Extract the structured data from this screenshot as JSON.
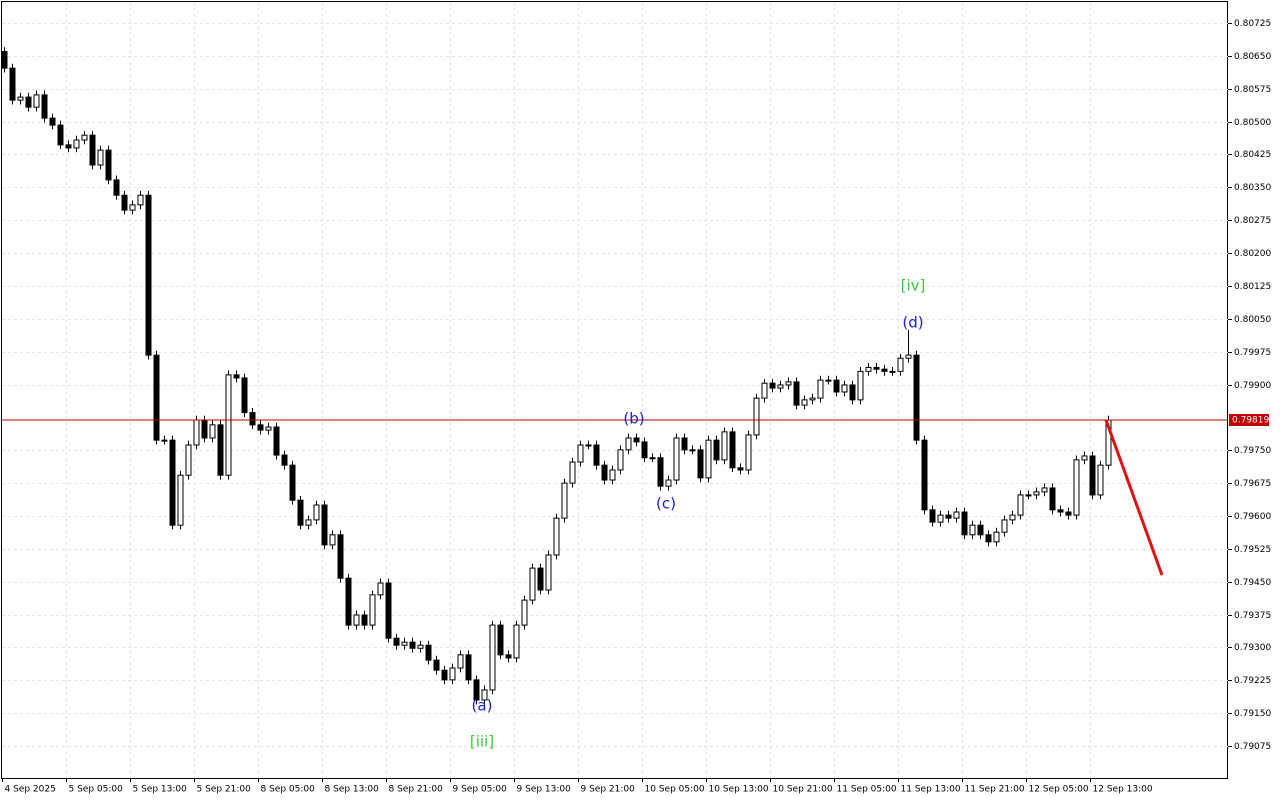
{
  "chart_data": {
    "type": "candlestick",
    "ylim": [
      0.79002,
      0.80773
    ],
    "yticks": [
      0.80725,
      {
        "value": 0.8065,
        "label": "0.80650"
      },
      0.80575,
      {
        "value": 0.805,
        "label": "0.80500"
      },
      0.80425,
      {
        "value": 0.8035,
        "label": "0.80350"
      },
      0.80275,
      {
        "value": 0.802,
        "label": "0.80200"
      },
      0.80125,
      {
        "value": 0.8005,
        "label": "0.80050"
      },
      0.79975,
      {
        "value": 0.799,
        "label": "0.79900"
      },
      {
        "value": 0.7975,
        "label": "0.79750"
      },
      0.79675,
      {
        "value": 0.796,
        "label": "0.79600"
      },
      0.79525,
      {
        "value": 0.7945,
        "label": "0.79450"
      },
      0.79375,
      {
        "value": 0.793,
        "label": "0.79300"
      },
      0.79225,
      {
        "value": 0.7915,
        "label": "0.79150"
      },
      0.79075
    ],
    "grid": true,
    "categories": [
      "4 Sep 2025",
      null,
      null,
      null,
      null,
      null,
      null,
      null,
      "5 Sep 05:00",
      null,
      null,
      null,
      null,
      null,
      null,
      null,
      "5 Sep 13:00",
      null,
      null,
      null,
      null,
      null,
      null,
      null,
      "5 Sep 21:00",
      null,
      null,
      null,
      null,
      null,
      null,
      null,
      "8 Sep 05:00",
      null,
      null,
      null,
      null,
      null,
      null,
      null,
      "8 Sep 13:00",
      null,
      null,
      null,
      null,
      null,
      null,
      null,
      "8 Sep 21:00",
      null,
      null,
      null,
      null,
      null,
      null,
      null,
      "9 Sep 05:00",
      null,
      null,
      null,
      null,
      null,
      null,
      null,
      "9 Sep 13:00",
      null,
      null,
      null,
      null,
      null,
      null,
      null,
      "9 Sep 21:00",
      null,
      null,
      null,
      null,
      null,
      null,
      null,
      "10 Sep 05:00",
      null,
      null,
      null,
      null,
      null,
      null,
      null,
      "10 Sep 13:00",
      null,
      null,
      null,
      null,
      null,
      null,
      null,
      "10 Sep 21:00",
      null,
      null,
      null,
      null,
      null,
      null,
      null,
      "11 Sep 05:00",
      null,
      null,
      null,
      null,
      null,
      null,
      null,
      "11 Sep 13:00",
      null,
      null,
      null,
      null,
      null,
      null,
      null,
      "11 Sep 21:00",
      null,
      null,
      null,
      null,
      null,
      null,
      null,
      "12 Sep 05:00",
      null,
      null,
      null,
      null,
      null,
      null,
      null,
      "12 Sep 13:00",
      null,
      null
    ],
    "open": [
      0.8066,
      0.80622,
      0.80549,
      0.80556,
      0.80533,
      0.80561,
      0.80508,
      0.80492,
      0.80447,
      0.8044,
      0.80458,
      0.80469,
      0.80401,
      0.80435,
      0.80367,
      0.80332,
      0.80298,
      0.8031,
      0.80332,
      0.79967,
      0.79773,
      0.79773,
      0.79579,
      0.79693,
      0.79762,
      0.79819,
      0.79778,
      0.79808,
      0.79693,
      0.79922,
      0.79915,
      0.79836,
      0.79808,
      0.79796,
      0.79803,
      0.79739,
      0.79716,
      0.79636,
      0.79579,
      0.79591,
      0.79625,
      0.79534,
      0.79557,
      0.79458,
      0.79351,
      0.79374,
      0.79351,
      0.7942,
      0.79447,
      0.79321,
      0.79305,
      0.79312,
      0.79298,
      0.79305,
      0.79271,
      0.79248,
      0.79226,
      0.79253,
      0.79283,
      0.79226,
      0.7918,
      0.79203,
      0.79351,
      0.79283,
      0.79276,
      0.79351,
      0.79408,
      0.79481,
      0.79431,
      0.79511,
      0.79595,
      0.79675,
      0.79723,
      0.79762,
      0.79762,
      0.79716,
      0.79682,
      0.79705,
      0.79751,
      0.79778,
      0.79769,
      0.79733,
      0.79733,
      0.79668,
      0.79682,
      0.79778,
      0.79751,
      0.79751,
      0.79687,
      0.79773,
      0.79728,
      0.79792,
      0.7971,
      0.79705,
      0.79785,
      0.79869,
      0.79903,
      0.79892,
      0.79899,
      0.79906,
      0.79853,
      0.79865,
      0.79869,
      0.7991,
      0.7991,
      0.79883,
      0.79899,
      0.79865,
      0.7993,
      0.79939,
      0.79935,
      0.7993,
      0.7993,
      0.7996,
      0.79967,
      0.79773,
      0.79614,
      0.79586,
      0.79602,
      0.79595,
      0.79609,
      0.79557,
      0.79579,
      0.79557,
      0.79541,
      0.79563,
      0.79591,
      0.79602,
      0.79648,
      0.79648,
      0.79655,
      0.79664,
      0.79614,
      0.79609,
      0.79602,
      0.79728,
      0.79737,
      0.79648,
      0.79716
    ],
    "high": [
      0.8067,
      0.80632,
      0.80566,
      0.80566,
      0.80571,
      0.80571,
      0.80518,
      0.80502,
      0.80457,
      0.80468,
      0.80479,
      0.80479,
      0.80445,
      0.80445,
      0.80377,
      0.80342,
      0.8032,
      0.80342,
      0.80342,
      0.79977,
      0.79783,
      0.79783,
      0.79703,
      0.79772,
      0.79829,
      0.79829,
      0.79818,
      0.79818,
      0.79932,
      0.79932,
      0.79925,
      0.79846,
      0.79818,
      0.79813,
      0.79813,
      0.79749,
      0.79726,
      0.79646,
      0.79601,
      0.79635,
      0.79635,
      0.79567,
      0.79567,
      0.79468,
      0.79384,
      0.79384,
      0.7943,
      0.79457,
      0.79457,
      0.79331,
      0.79322,
      0.79322,
      0.79315,
      0.79315,
      0.79281,
      0.79258,
      0.79263,
      0.79293,
      0.79293,
      0.79236,
      0.79213,
      0.79361,
      0.79361,
      0.79293,
      0.79361,
      0.79418,
      0.79491,
      0.79491,
      0.79521,
      0.79605,
      0.79685,
      0.79733,
      0.79772,
      0.79772,
      0.79772,
      0.79726,
      0.79715,
      0.79761,
      0.79788,
      0.79788,
      0.79779,
      0.79743,
      0.79743,
      0.79692,
      0.79788,
      0.79788,
      0.79761,
      0.79761,
      0.79783,
      0.79783,
      0.79802,
      0.79802,
      0.7972,
      0.79795,
      0.79879,
      0.79913,
      0.79913,
      0.79909,
      0.79916,
      0.79916,
      0.79875,
      0.79879,
      0.7992,
      0.7992,
      0.7992,
      0.79909,
      0.79909,
      0.7994,
      0.79949,
      0.79949,
      0.79945,
      0.7994,
      0.7997,
      0.80025,
      0.79977,
      0.79783,
      0.79624,
      0.79612,
      0.79612,
      0.79619,
      0.79619,
      0.79589,
      0.79589,
      0.79567,
      0.79573,
      0.79601,
      0.79612,
      0.79658,
      0.79658,
      0.79665,
      0.79674,
      0.79674,
      0.79624,
      0.79619,
      0.79738,
      0.79747,
      0.79747,
      0.79726,
      0.79829
    ],
    "low": [
      0.80612,
      0.80539,
      0.80539,
      0.80523,
      0.80523,
      0.80498,
      0.80482,
      0.80437,
      0.8043,
      0.8043,
      0.80448,
      0.80391,
      0.80391,
      0.80357,
      0.80322,
      0.80288,
      0.80288,
      0.803,
      0.79957,
      0.79763,
      0.79763,
      0.79569,
      0.79569,
      0.79683,
      0.79752,
      0.79768,
      0.79768,
      0.79683,
      0.79683,
      0.79905,
      0.79826,
      0.79798,
      0.79786,
      0.79786,
      0.79729,
      0.79706,
      0.79626,
      0.79569,
      0.79569,
      0.79581,
      0.79524,
      0.79524,
      0.79448,
      0.79341,
      0.79341,
      0.79341,
      0.79341,
      0.7941,
      0.79311,
      0.79295,
      0.79295,
      0.79288,
      0.79288,
      0.79261,
      0.79238,
      0.79216,
      0.79216,
      0.79243,
      0.79216,
      0.7917,
      0.7917,
      0.79193,
      0.79273,
      0.79266,
      0.79266,
      0.79341,
      0.79398,
      0.79421,
      0.79421,
      0.79501,
      0.79585,
      0.79665,
      0.79713,
      0.79752,
      0.79706,
      0.79672,
      0.79672,
      0.79695,
      0.79741,
      0.79759,
      0.79723,
      0.79723,
      0.79658,
      0.79658,
      0.79672,
      0.79741,
      0.79741,
      0.79677,
      0.79677,
      0.79718,
      0.79718,
      0.797,
      0.79695,
      0.79695,
      0.79775,
      0.79859,
      0.79882,
      0.79882,
      0.79889,
      0.79843,
      0.79843,
      0.79855,
      0.79859,
      0.799,
      0.79873,
      0.79873,
      0.79855,
      0.79855,
      0.7992,
      0.79925,
      0.7992,
      0.7992,
      0.7992,
      0.7995,
      0.79763,
      0.79604,
      0.79576,
      0.79576,
      0.79585,
      0.79585,
      0.79547,
      0.79547,
      0.79547,
      0.79531,
      0.79531,
      0.79553,
      0.79581,
      0.79592,
      0.79638,
      0.79638,
      0.79645,
      0.79604,
      0.79599,
      0.79592,
      0.79592,
      0.79718,
      0.79638,
      0.79638,
      0.79706
    ],
    "close": [
      0.80622,
      0.80549,
      0.80556,
      0.80533,
      0.80561,
      0.80508,
      0.80492,
      0.80447,
      0.8044,
      0.80458,
      0.80469,
      0.80401,
      0.80435,
      0.80367,
      0.80332,
      0.80298,
      0.8031,
      0.80332,
      0.79967,
      0.79773,
      0.79773,
      0.79579,
      0.79693,
      0.79762,
      0.79819,
      0.79778,
      0.79808,
      0.79693,
      0.79922,
      0.79915,
      0.79836,
      0.79808,
      0.79796,
      0.79803,
      0.79739,
      0.79716,
      0.79636,
      0.79579,
      0.79591,
      0.79625,
      0.79534,
      0.79557,
      0.79458,
      0.79351,
      0.79374,
      0.79351,
      0.7942,
      0.79447,
      0.79321,
      0.79305,
      0.79312,
      0.79298,
      0.79305,
      0.79271,
      0.79248,
      0.79226,
      0.79253,
      0.79283,
      0.79226,
      0.7918,
      0.79203,
      0.79351,
      0.79283,
      0.79276,
      0.79351,
      0.79408,
      0.79481,
      0.79431,
      0.79511,
      0.79595,
      0.79675,
      0.79723,
      0.79762,
      0.79762,
      0.79716,
      0.79682,
      0.79705,
      0.79751,
      0.79778,
      0.79769,
      0.79733,
      0.79733,
      0.79668,
      0.79682,
      0.79778,
      0.79751,
      0.79751,
      0.79687,
      0.79773,
      0.79728,
      0.79792,
      0.7971,
      0.79705,
      0.79785,
      0.79869,
      0.79903,
      0.79892,
      0.79899,
      0.79906,
      0.79853,
      0.79865,
      0.79869,
      0.7991,
      0.7991,
      0.79883,
      0.79899,
      0.79865,
      0.7993,
      0.79939,
      0.79935,
      0.7993,
      0.7993,
      0.7996,
      0.79967,
      0.79773,
      0.79614,
      0.79586,
      0.79602,
      0.79595,
      0.79609,
      0.79557,
      0.79579,
      0.79557,
      0.79541,
      0.79563,
      0.79591,
      0.79602,
      0.79648,
      0.79648,
      0.79655,
      0.79664,
      0.79614,
      0.79609,
      0.79602,
      0.79728,
      0.79737,
      0.79648,
      0.79716,
      0.79819
    ],
    "current_price": 0.79819,
    "price_line_color": "#c00000",
    "forecast": {
      "color": "#e01010",
      "values": [
        0.79819,
        0.79465
      ]
    },
    "annotations": [
      {
        "text": "[iii]",
        "color": "#3cc83c"
      },
      {
        "text": "(a)",
        "color": "#2020d0"
      },
      {
        "text": "(b)",
        "color": "#2020d0"
      },
      {
        "text": "(c)",
        "color": "#2020d0"
      },
      {
        "text": "[iv]",
        "color": "#3cc83c"
      },
      {
        "text": "(d)",
        "color": "#2020d0"
      }
    ]
  }
}
